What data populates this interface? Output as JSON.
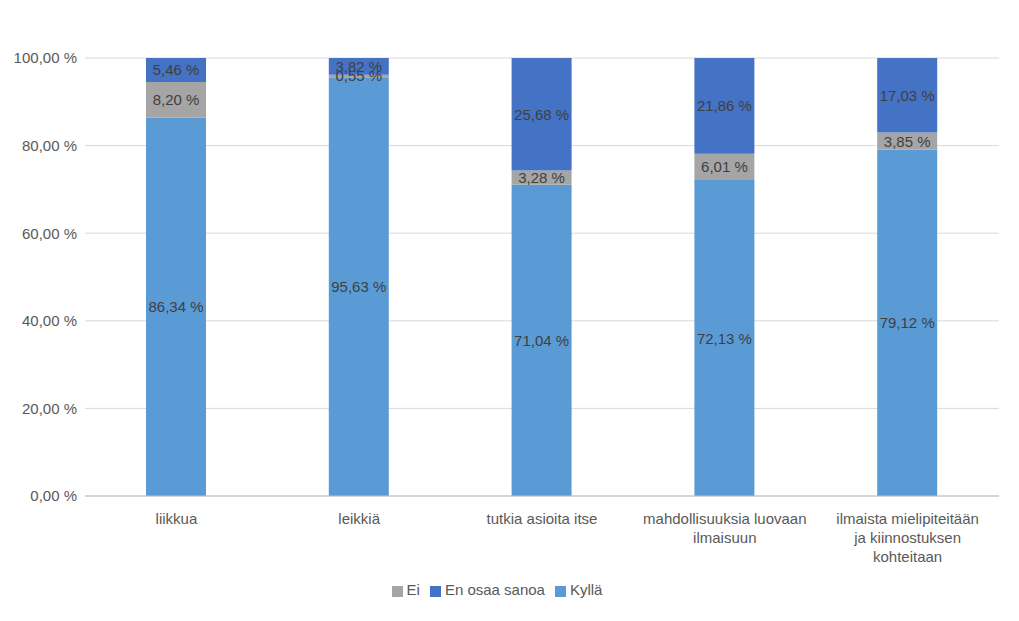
{
  "chart_data": {
    "type": "bar",
    "stacked": true,
    "grid": true,
    "legend": "bottom",
    "data_labels": true,
    "categories": [
      "liikkua",
      "leikkiä",
      "tutkia asioita itse",
      "mahdollisuuksia luovaan ilmaisuun",
      "ilmaista mielipiteitään ja kiinnostuksen kohteitaan"
    ],
    "series": [
      {
        "name": "Kyllä",
        "color": "#5b9bd5",
        "values": [
          86.34,
          95.63,
          71.04,
          72.13,
          79.12
        ],
        "value_labels": [
          "86,34 %",
          "95,63 %",
          "71,04 %",
          "72,13 %",
          "79,12 %"
        ]
      },
      {
        "name": "Ei",
        "color": "#a5a5a5",
        "values": [
          8.2,
          0.55,
          3.28,
          6.01,
          3.85
        ],
        "value_labels": [
          "8,20 %",
          "0,55 %",
          "3,28 %",
          "6,01 %",
          "3,85 %"
        ]
      },
      {
        "name": "En osaa sanoa",
        "color": "#4472c4",
        "values": [
          5.46,
          3.82,
          25.68,
          21.86,
          17.03
        ],
        "value_labels": [
          "5,46 %",
          "3,82 %",
          "25,68 %",
          "21,86 %",
          "17,03 %"
        ]
      }
    ],
    "ylim": [
      0,
      100
    ],
    "yticks": [
      {
        "value": 0,
        "label": "0,00 %"
      },
      {
        "value": 20,
        "label": "20,00 %"
      },
      {
        "value": 40,
        "label": "40,00 %"
      },
      {
        "value": 60,
        "label": "60,00 %"
      },
      {
        "value": 80,
        "label": "80,00 %"
      },
      {
        "value": 100,
        "label": "100,00 %"
      }
    ]
  }
}
